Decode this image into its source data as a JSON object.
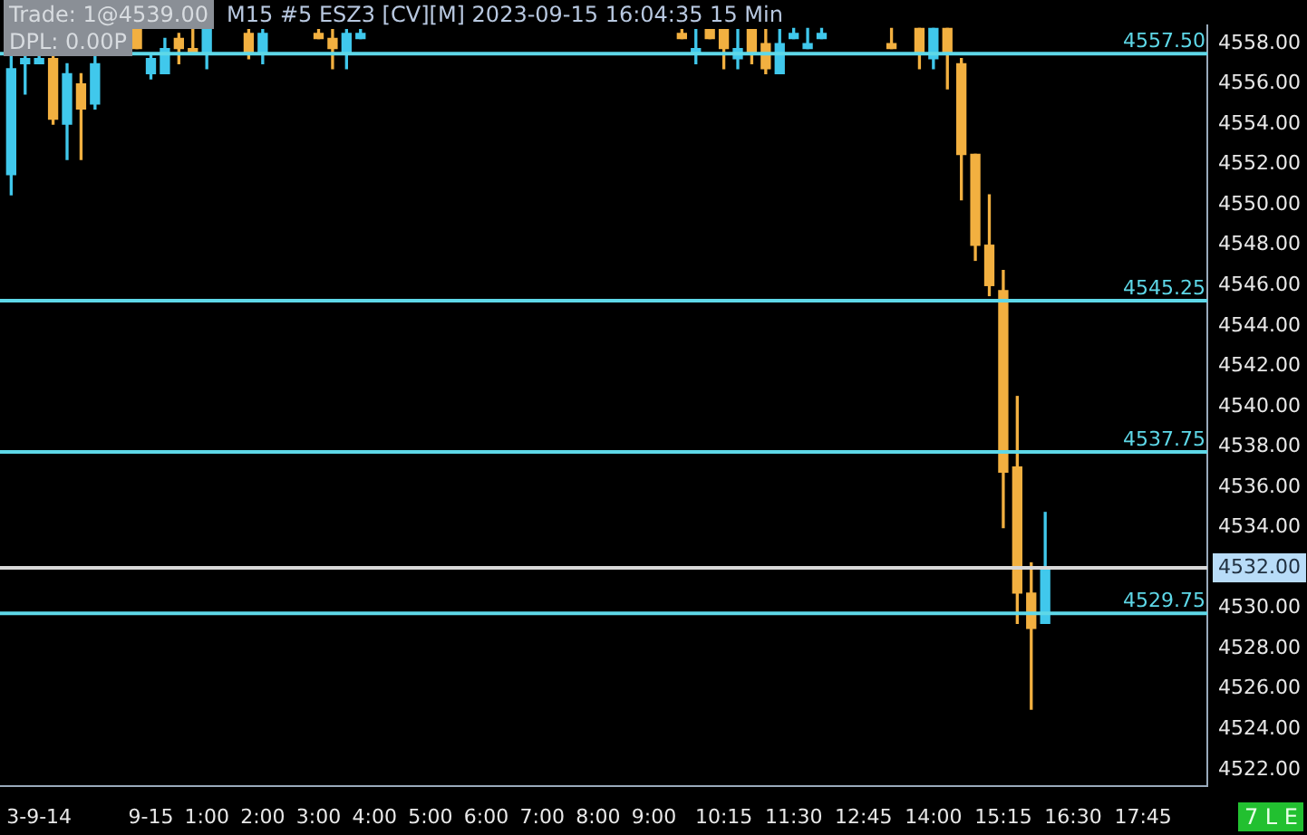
{
  "chart_data": {
    "type": "candlestick",
    "title": "Trade: 1@4539.00",
    "subtitle": "M15 #5 ESZ3 [CV][M] 2023-09-15 16:04:35 15 Min",
    "annotations": [
      "DPL: 0.00P",
      "7 L E"
    ],
    "x": [
      -2.5,
      -2.25,
      -2,
      -1.75,
      -1.5,
      -1.25,
      -1,
      -0.25,
      0,
      0.25,
      0.5,
      0.75,
      1,
      1.75,
      2,
      3,
      3.25,
      3.5,
      3.75,
      9.5,
      9.75,
      10,
      10.25,
      10.5,
      10.75,
      11,
      11.25,
      11.5,
      11.75,
      12,
      13.25,
      13.75,
      14,
      14.25,
      14.5,
      14.75,
      15,
      15.25,
      15.5,
      15.75,
      16
    ],
    "ohlc": [
      [
        4551.5,
        4557.5,
        4550.5,
        4556.75
      ],
      [
        4557,
        4557.5,
        4555.5,
        4557.25
      ],
      [
        4557,
        4557.5,
        4557,
        4557.25
      ],
      [
        4557.25,
        4557.5,
        4554,
        4554.25
      ],
      [
        4554,
        4557,
        4552.25,
        4556.5
      ],
      [
        4556,
        4556.5,
        4552.25,
        4554.75
      ],
      [
        4555,
        4557.5,
        4554.75,
        4557
      ],
      [
        4558.75,
        4558.75,
        4557.75,
        4557.75
      ],
      [
        4556.5,
        4557.5,
        4556.25,
        4557.25
      ],
      [
        4556.5,
        4558.25,
        4556.5,
        4557.75
      ],
      [
        4558.25,
        4558.5,
        4557,
        4557.75
      ],
      [
        4557.75,
        4558.75,
        4557.5,
        4557.5
      ],
      [
        4557.5,
        4558.75,
        4556.75,
        4558.75
      ],
      [
        4558.5,
        4558.75,
        4557.25,
        4557.5
      ],
      [
        4557.5,
        4558.75,
        4557,
        4558.5
      ],
      [
        4558.5,
        4558.75,
        4558.25,
        4558.25
      ],
      [
        4558.25,
        4558.75,
        4556.75,
        4557.75
      ],
      [
        4557.5,
        4558.75,
        4556.75,
        4558.5
      ],
      [
        4558.25,
        4558.75,
        4558.25,
        4558.5
      ],
      [
        4558.5,
        4558.75,
        4558.25,
        4558.25
      ],
      [
        4557.5,
        4558.75,
        4557,
        4557.75
      ],
      [
        4558.75,
        4558.75,
        4558.25,
        4558.25
      ],
      [
        4558.75,
        4558.75,
        4556.75,
        4557.75
      ],
      [
        4557.25,
        4558.75,
        4556.75,
        4557.75
      ],
      [
        4558.75,
        4558.75,
        4557,
        4557.5
      ],
      [
        4558,
        4558.75,
        4556.5,
        4556.75
      ],
      [
        4556.5,
        4558.75,
        4556.5,
        4558
      ],
      [
        4558.25,
        4558.75,
        4558.25,
        4558.5
      ],
      [
        4557.75,
        4558.75,
        4557.75,
        4558
      ],
      [
        4558.25,
        4558.75,
        4558.25,
        4558.5
      ],
      [
        4558,
        4558.75,
        4557.75,
        4557.75
      ],
      [
        4558.75,
        4558.75,
        4556.75,
        4557.5
      ],
      [
        4557.25,
        4558.75,
        4556.75,
        4558.75
      ],
      [
        4558.75,
        4558.75,
        4555.75,
        4557.5
      ],
      [
        4557,
        4557.25,
        4550.25,
        4552.5
      ],
      [
        4552.5,
        4552.5,
        4547.25,
        4548
      ],
      [
        4548,
        4550.5,
        4545.5,
        4546
      ],
      [
        4545.75,
        4546.75,
        4534,
        4536.75
      ],
      [
        4537,
        4540.5,
        4529.25,
        4530.75
      ],
      [
        4530.75,
        4532.25,
        4525,
        4529
      ],
      [
        4529.25,
        4534.75,
        4529.25,
        4532
      ]
    ],
    "colors": [
      "#40c8ec",
      "#40c8ec",
      "#40c8ec",
      "#f2b040",
      "#40c8ec",
      "#f2b040",
      "#40c8ec",
      "#f2b040",
      "#40c8ec",
      "#40c8ec",
      "#f2b040",
      "#f2b040",
      "#40c8ec",
      "#f2b040",
      "#40c8ec",
      "#f2b040",
      "#f2b040",
      "#40c8ec",
      "#40c8ec",
      "#f2b040",
      "#40c8ec",
      "#f2b040",
      "#f2b040",
      "#40c8ec",
      "#f2b040",
      "#f2b040",
      "#40c8ec",
      "#40c8ec",
      "#40c8ec",
      "#40c8ec",
      "#f2b040",
      "#f2b040",
      "#40c8ec",
      "#f2b040",
      "#f2b040",
      "#f2b040",
      "#f2b040",
      "#f2b040",
      "#f2b040",
      "#f2b040",
      "#40c8ec"
    ],
    "xlim": [
      -2.7,
      18.9
    ],
    "xticks": [
      {
        "value": -2,
        "label": "3-9-14"
      },
      {
        "value": 0,
        "label": "9-15"
      },
      {
        "value": 1,
        "label": "1:00"
      },
      {
        "value": 2,
        "label": "2:00"
      },
      {
        "value": 3,
        "label": "3:00"
      },
      {
        "value": 4,
        "label": "4:00"
      },
      {
        "value": 5,
        "label": "5:00"
      },
      {
        "value": 6,
        "label": "6:00"
      },
      {
        "value": 7,
        "label": "7:00"
      },
      {
        "value": 8,
        "label": "8:00"
      },
      {
        "value": 9,
        "label": "9:00"
      },
      {
        "value": 10.25,
        "label": "10:15"
      },
      {
        "value": 11.5,
        "label": "11:30"
      },
      {
        "value": 12.75,
        "label": "12:45"
      },
      {
        "value": 14,
        "label": "14:00"
      },
      {
        "value": 15.25,
        "label": "15:15"
      },
      {
        "value": 16.5,
        "label": "16:30"
      },
      {
        "value": 17.75,
        "label": "17:45"
      }
    ],
    "ylim": [
      4521.2,
      4558.9
    ],
    "yticks": [
      {
        "value": 4522,
        "label": "4522.00"
      },
      {
        "value": 4524,
        "label": "4524.00"
      },
      {
        "value": 4526,
        "label": "4526.00"
      },
      {
        "value": 4528,
        "label": "4528.00"
      },
      {
        "value": 4530,
        "label": "4530.00"
      },
      {
        "value": 4532,
        "label": null
      },
      {
        "value": 4534,
        "label": "4534.00"
      },
      {
        "value": 4536,
        "label": "4536.00"
      },
      {
        "value": 4538,
        "label": "4538.00"
      },
      {
        "value": 4540,
        "label": "4540.00"
      },
      {
        "value": 4542,
        "label": "4542.00"
      },
      {
        "value": 4544,
        "label": "4544.00"
      },
      {
        "value": 4546,
        "label": "4546.00"
      },
      {
        "value": 4548,
        "label": "4548.00"
      },
      {
        "value": 4550,
        "label": "4550.00"
      },
      {
        "value": 4552,
        "label": "4552.00"
      },
      {
        "value": 4554,
        "label": "4554.00"
      },
      {
        "value": 4556,
        "label": "4556.00"
      },
      {
        "value": 4558,
        "label": "4558.00"
      }
    ],
    "ref_lines": [
      {
        "axis": "y",
        "value": 4557.5,
        "label": "4557.50",
        "color": "#5ed8e8"
      },
      {
        "axis": "y",
        "value": 4545.25,
        "label": "4545.25",
        "color": "#5ed8e8"
      },
      {
        "axis": "y",
        "value": 4537.75,
        "label": "4537.75",
        "color": "#5ed8e8"
      },
      {
        "axis": "y",
        "value": 4529.75,
        "label": "4529.75",
        "color": "#5ed8e8"
      },
      {
        "axis": "y",
        "value": 4532,
        "label": "4532.00",
        "color": "#d8d8d8"
      }
    ],
    "grid": false,
    "legend": false
  }
}
